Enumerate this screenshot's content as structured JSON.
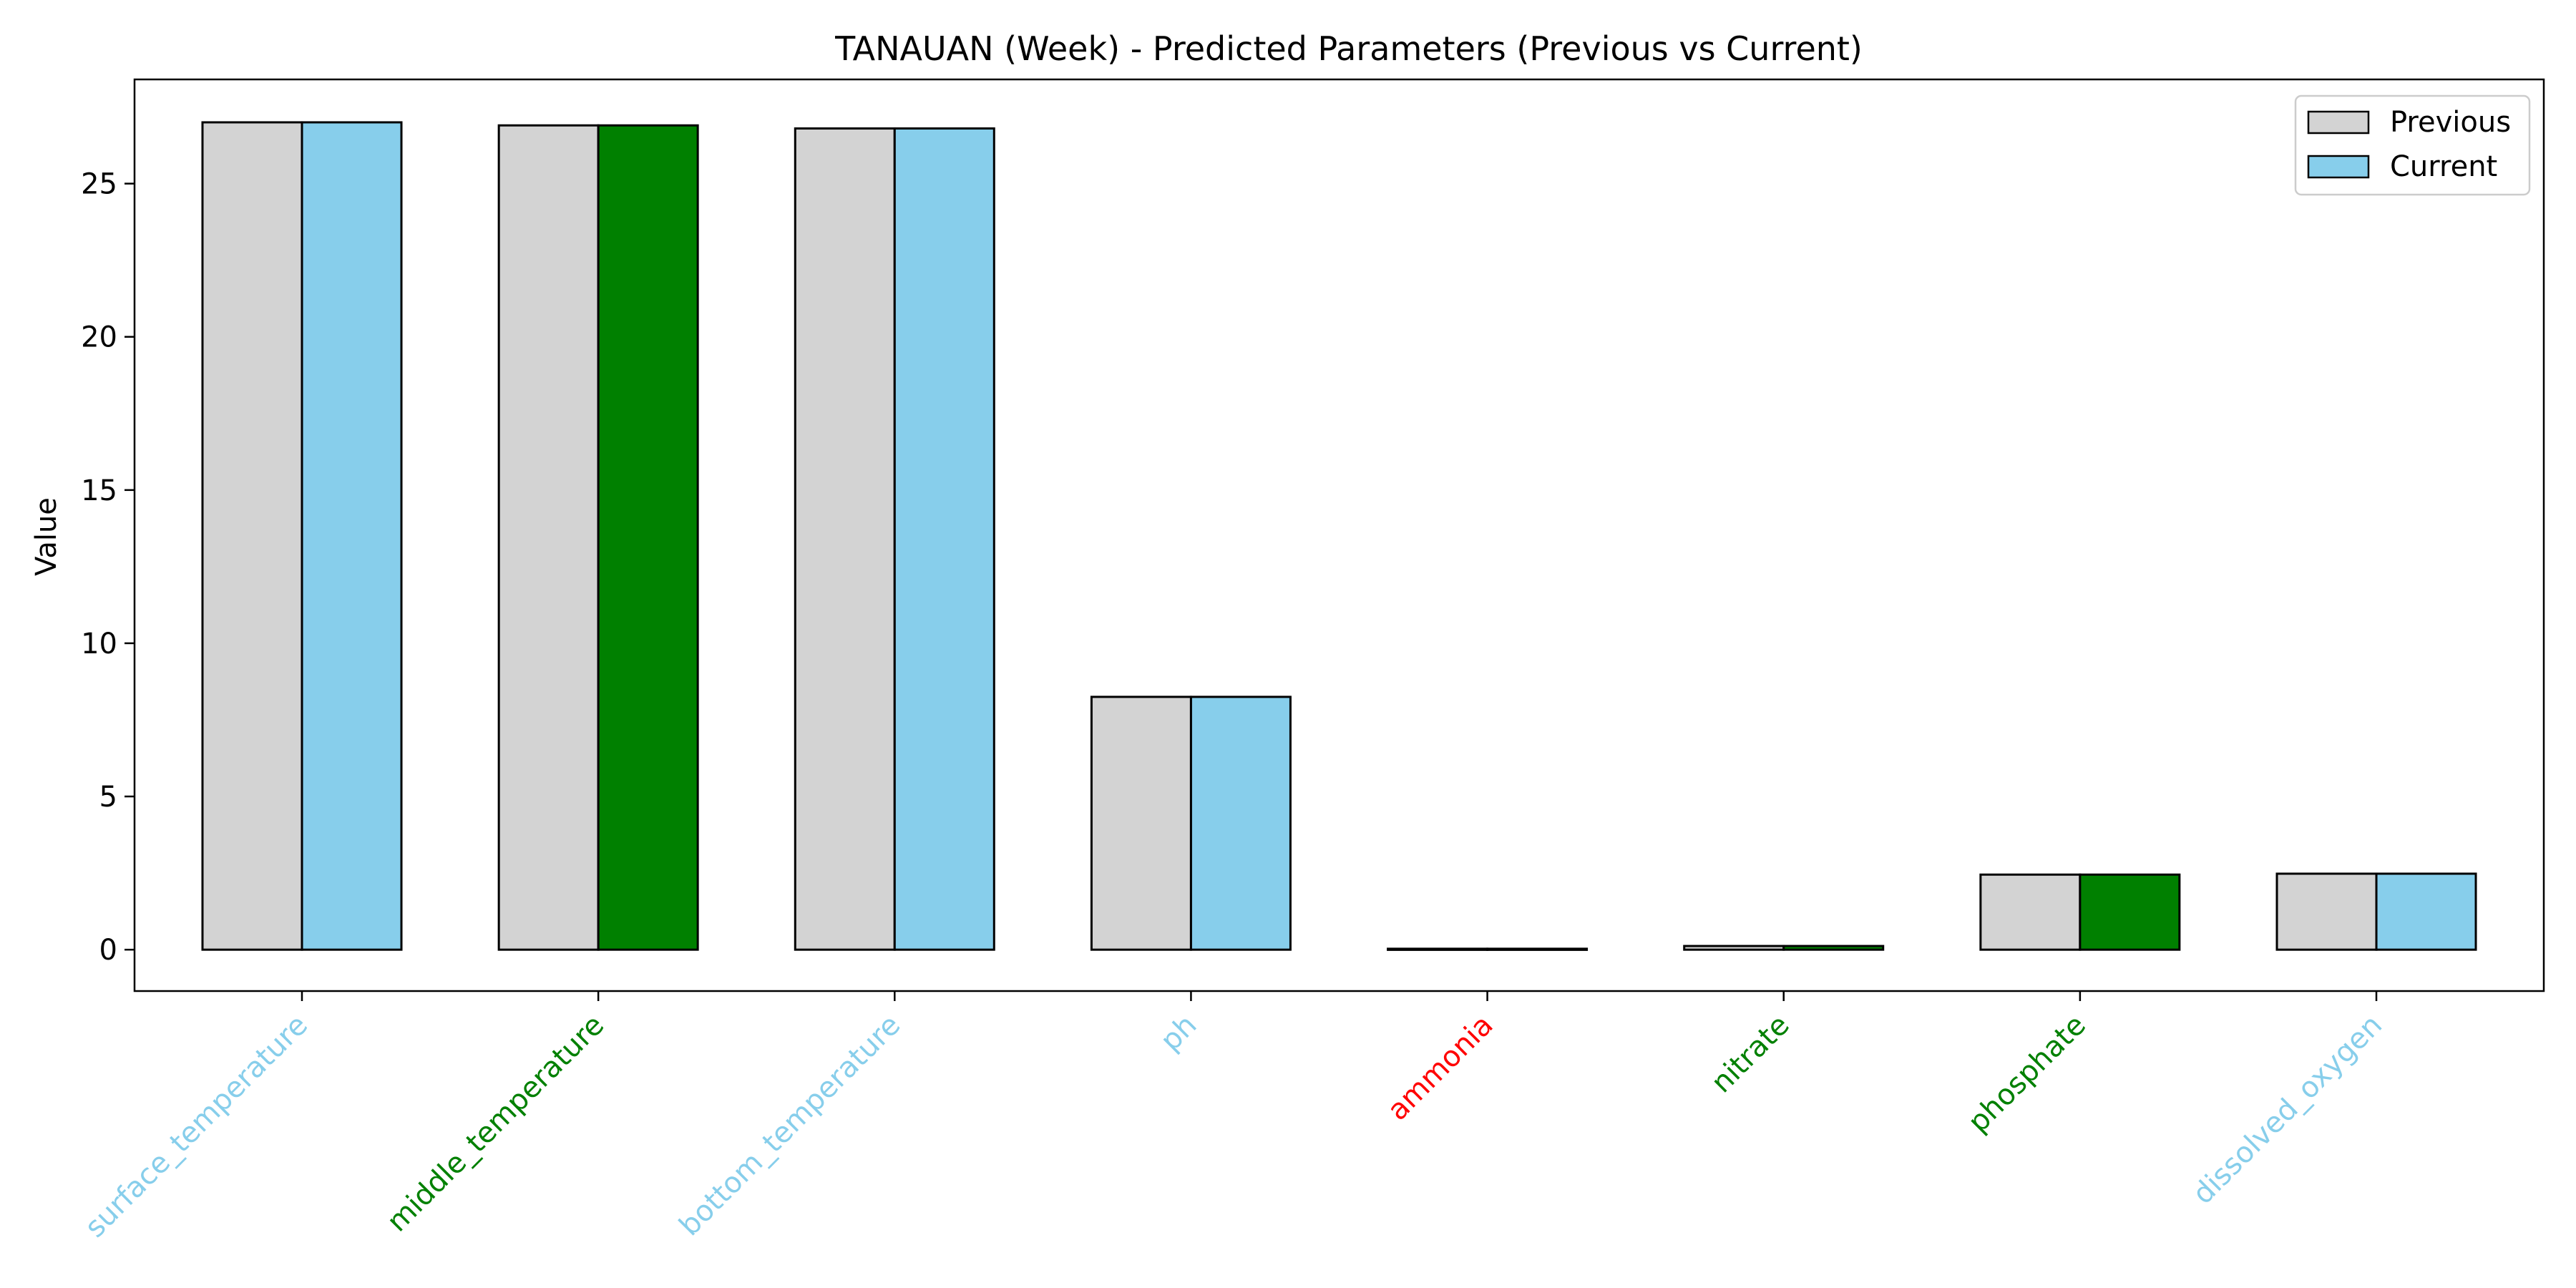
{
  "chart_data": {
    "type": "bar",
    "title": "TANAUAN (Week) - Predicted Parameters (Previous vs Current)",
    "xlabel": "",
    "ylabel": "Value",
    "ylim": [
      -1.35,
      28.4
    ],
    "yticks": [
      0,
      5,
      10,
      15,
      20,
      25
    ],
    "categories": [
      "surface_temperature",
      "middle_temperature",
      "bottom_temperature",
      "ph",
      "ammonia",
      "nitrate",
      "phosphate",
      "dissolved_oxygen"
    ],
    "category_colors": [
      "#87CEEB",
      "#008000",
      "#87CEEB",
      "#87CEEB",
      "#FF0000",
      "#008000",
      "#008000",
      "#87CEEB"
    ],
    "series": [
      {
        "name": "Previous",
        "values": [
          27.0,
          26.9,
          26.8,
          8.25,
          0.03,
          0.12,
          2.45,
          2.48
        ],
        "colors": [
          "#D3D3D3",
          "#D3D3D3",
          "#D3D3D3",
          "#D3D3D3",
          "#D3D3D3",
          "#D3D3D3",
          "#D3D3D3",
          "#D3D3D3"
        ]
      },
      {
        "name": "Current",
        "values": [
          27.0,
          26.9,
          26.8,
          8.25,
          0.03,
          0.12,
          2.45,
          2.48
        ],
        "colors": [
          "#87CEEB",
          "#008000",
          "#87CEEB",
          "#87CEEB",
          "#FF0000",
          "#008000",
          "#008000",
          "#87CEEB"
        ]
      }
    ],
    "legend": {
      "position": "upper-right",
      "entries": [
        {
          "label": "Previous",
          "color": "#D3D3D3"
        },
        {
          "label": "Current",
          "color": "#87CEEB"
        }
      ]
    },
    "grid": false
  }
}
